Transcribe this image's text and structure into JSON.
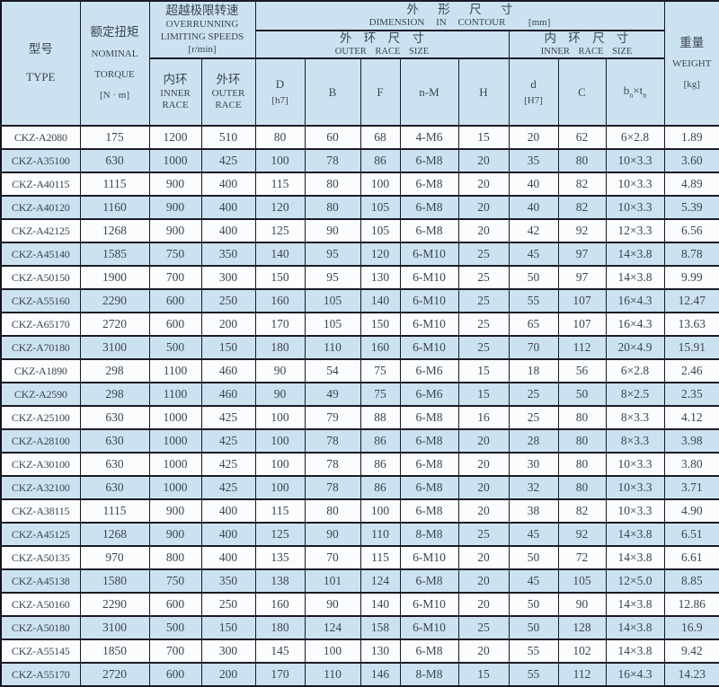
{
  "table": {
    "header": {
      "type_cn": "型号",
      "type_en": "TYPE",
      "torque_cn": "额定扭矩",
      "torque_en1": "NOMINAL",
      "torque_en2": "TORQUE",
      "torque_unit": "[N · m]",
      "speeds_cn": "超越极限转速",
      "speeds_en1": "OVERRUNNING",
      "speeds_en2": "LIMITING SPEEDS",
      "speeds_unit": "[r/min]",
      "inner_race_cn": "内环",
      "inner_race_en1": "INNER",
      "inner_race_en2": "RACE",
      "outer_race_cn": "外环",
      "outer_race_en1": "OUTER",
      "outer_race_en2": "RACE",
      "dim_cn": "外 形 尺 寸",
      "dim_en": "DIMENSION IN CONTOUR",
      "dim_unit": "[mm]",
      "outer_size_cn": "外 环 尺 寸",
      "outer_size_en": "OUTER RACE SIZE",
      "inner_size_cn": "内 环 尺 寸",
      "inner_size_en": "INNER RACE SIZE",
      "col_D": "D",
      "col_D_unit": "[h7]",
      "col_B": "B",
      "col_F": "F",
      "col_nM": "n-M",
      "col_H": "H",
      "col_d": "d",
      "col_d_unit": "[H7]",
      "col_C": "C",
      "col_bt_b": "b",
      "col_bt_bsub": "n",
      "col_bt_times": "×",
      "col_bt_t": "t",
      "col_bt_tsub": "n",
      "weight_cn": "重量",
      "weight_en": "WEIGHT",
      "weight_unit": "[kg]"
    },
    "rows": [
      [
        "CKZ-A2080",
        "175",
        "1200",
        "510",
        "80",
        "60",
        "68",
        "4-M6",
        "15",
        "20",
        "62",
        "6×2.8",
        "1.89"
      ],
      [
        "CKZ-A35100",
        "630",
        "1000",
        "425",
        "100",
        "78",
        "86",
        "6-M8",
        "20",
        "35",
        "80",
        "10×3.3",
        "3.60"
      ],
      [
        "CKZ-A40115",
        "1115",
        "900",
        "400",
        "115",
        "80",
        "100",
        "6-M8",
        "20",
        "40",
        "82",
        "10×3.3",
        "4.89"
      ],
      [
        "CKZ-A40120",
        "1160",
        "900",
        "400",
        "120",
        "80",
        "105",
        "6-M8",
        "20",
        "40",
        "82",
        "10×3.3",
        "5.39"
      ],
      [
        "CKZ-A42125",
        "1268",
        "900",
        "400",
        "125",
        "90",
        "105",
        "6-M8",
        "20",
        "42",
        "92",
        "12×3.3",
        "6.56"
      ],
      [
        "CKZ-A45140",
        "1585",
        "750",
        "350",
        "140",
        "95",
        "120",
        "6-M10",
        "25",
        "45",
        "97",
        "14×3.8",
        "8.78"
      ],
      [
        "CKZ-A50150",
        "1900",
        "700",
        "300",
        "150",
        "95",
        "130",
        "6-M10",
        "25",
        "50",
        "97",
        "14×3.8",
        "9.99"
      ],
      [
        "CKZ-A55160",
        "2290",
        "600",
        "250",
        "160",
        "105",
        "140",
        "6-M10",
        "25",
        "55",
        "107",
        "16×4.3",
        "12.47"
      ],
      [
        "CKZ-A65170",
        "2720",
        "600",
        "200",
        "170",
        "105",
        "150",
        "6-M10",
        "25",
        "65",
        "107",
        "16×4.3",
        "13.63"
      ],
      [
        "CKZ-A70180",
        "3100",
        "500",
        "150",
        "180",
        "110",
        "160",
        "6-M10",
        "25",
        "70",
        "112",
        "20×4.9",
        "15.91"
      ],
      [
        "CKZ-A1890",
        "298",
        "1100",
        "460",
        "90",
        "54",
        "75",
        "6-M6",
        "15",
        "18",
        "56",
        "6×2.8",
        "2.46"
      ],
      [
        "CKZ-A2590",
        "298",
        "1100",
        "460",
        "90",
        "49",
        "75",
        "6-M6",
        "15",
        "25",
        "50",
        "8×2.5",
        "2.35"
      ],
      [
        "CKZ-A25100",
        "630",
        "1000",
        "425",
        "100",
        "79",
        "88",
        "6-M8",
        "16",
        "25",
        "80",
        "8×3.3",
        "4.12"
      ],
      [
        "CKZ-A28100",
        "630",
        "1000",
        "425",
        "100",
        "78",
        "86",
        "6-M8",
        "20",
        "28",
        "80",
        "8×3.3",
        "3.98"
      ],
      [
        "CKZ-A30100",
        "630",
        "1000",
        "425",
        "100",
        "78",
        "86",
        "6-M8",
        "20",
        "30",
        "80",
        "10×3.3",
        "3.80"
      ],
      [
        "CKZ-A32100",
        "630",
        "1000",
        "425",
        "100",
        "78",
        "86",
        "6-M8",
        "20",
        "32",
        "80",
        "10×3.3",
        "3.71"
      ],
      [
        "CKZ-A38115",
        "1115",
        "900",
        "400",
        "115",
        "80",
        "100",
        "6-M8",
        "20",
        "38",
        "82",
        "10×3.3",
        "4.90"
      ],
      [
        "CKZ-A45125",
        "1268",
        "900",
        "400",
        "125",
        "90",
        "110",
        "8-M8",
        "25",
        "45",
        "92",
        "14×3.8",
        "6.51"
      ],
      [
        "CKZ-A50135",
        "970",
        "800",
        "400",
        "135",
        "70",
        "115",
        "6-M10",
        "20",
        "50",
        "72",
        "14×3.8",
        "6.61"
      ],
      [
        "CKZ-A45138",
        "1580",
        "750",
        "350",
        "138",
        "101",
        "124",
        "6-M8",
        "20",
        "45",
        "105",
        "12×5.0",
        "8.85"
      ],
      [
        "CKZ-A50160",
        "2290",
        "600",
        "250",
        "160",
        "90",
        "140",
        "6-M10",
        "20",
        "50",
        "90",
        "14×3.8",
        "12.86"
      ],
      [
        "CKZ-A50180",
        "3100",
        "500",
        "150",
        "180",
        "124",
        "158",
        "6-M10",
        "25",
        "50",
        "128",
        "14×3.8",
        "16.9"
      ],
      [
        "CKZ-A55145",
        "1850",
        "700",
        "300",
        "145",
        "100",
        "130",
        "6-M8",
        "20",
        "55",
        "102",
        "14×3.8",
        "9.42"
      ],
      [
        "CKZ-A55170",
        "2720",
        "600",
        "200",
        "170",
        "110",
        "146",
        "8-M8",
        "15",
        "55",
        "112",
        "16×4.3",
        "14.23"
      ]
    ]
  },
  "colors": {
    "stripe_blue": "#cde2f0",
    "row_white": "#fbfcfd",
    "border_dark": "#1a1a26",
    "text": "#3a4650"
  }
}
